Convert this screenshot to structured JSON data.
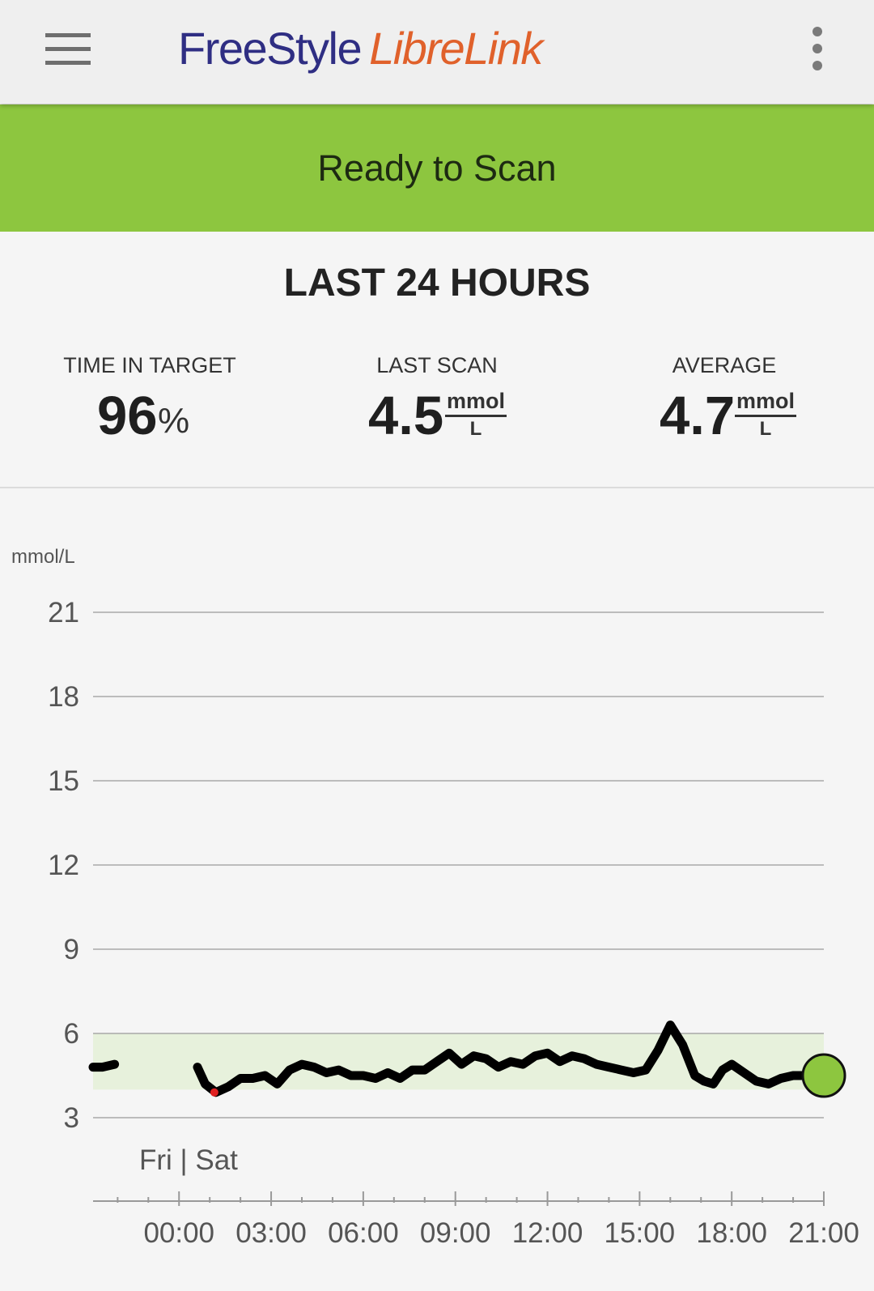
{
  "app": {
    "logo_part1": "FreeStyle",
    "logo_part2": "LibreLink",
    "logo_colors": {
      "freestyle": "#2f2e83",
      "librelink": "#e0612b"
    },
    "menu_icon": "hamburger-menu-icon",
    "overflow_icon": "more-vertical-icon"
  },
  "banner": {
    "text": "Ready to Scan",
    "color": "#8dc63f"
  },
  "summary": {
    "title": "LAST 24 HOURS",
    "time_in_target": {
      "label": "TIME IN TARGET",
      "value": "96",
      "unit": "%"
    },
    "last_scan": {
      "label": "LAST SCAN",
      "value": "4.5",
      "unit_num": "mmol",
      "unit_den": "L"
    },
    "average": {
      "label": "AVERAGE",
      "value": "4.7",
      "unit_num": "mmol",
      "unit_den": "L"
    }
  },
  "chart_data": {
    "type": "line",
    "ylabel": "mmol/L",
    "y_ticks": [
      "21",
      "18",
      "15",
      "12",
      "9",
      "6",
      "3"
    ],
    "ylim": [
      3,
      21
    ],
    "x_ticks": [
      "00:00",
      "03:00",
      "06:00",
      "09:00",
      "12:00",
      "15:00",
      "18:00",
      "21:00"
    ],
    "day_label": "Fri | Sat",
    "xlim_hours": [
      -2.8,
      21.0
    ],
    "target_range": [
      4.0,
      6.0
    ],
    "target_color": "#e7f1dc",
    "line_color": "#000000",
    "low_color": "#e02020",
    "current_marker_color": "#8dc63f",
    "grid": true,
    "segments": [
      {
        "x": [
          -2.8,
          -2.5,
          -2.1
        ],
        "y": [
          4.8,
          4.8,
          4.9
        ]
      },
      {
        "x": [
          0.6,
          0.85,
          1.2,
          1.6,
          2.0,
          2.4,
          2.8,
          3.2,
          3.6,
          4.0,
          4.4,
          4.8,
          5.2,
          5.6,
          6.0,
          6.4,
          6.8,
          7.2,
          7.6,
          8.0,
          8.4,
          8.8,
          9.2,
          9.6,
          10.0,
          10.4,
          10.8,
          11.2,
          11.6,
          12.0,
          12.4,
          12.8,
          13.2,
          13.6,
          14.0,
          14.4,
          14.8,
          15.2,
          15.6,
          16.0,
          16.4,
          16.8,
          17.1,
          17.4,
          17.7,
          18.0,
          18.4,
          18.8,
          19.2,
          19.6,
          20.0,
          20.4,
          20.7,
          21.0
        ]
      },
      {
        "x": [
          0.6,
          0.85,
          1.2
        ],
        "y": [
          4.8,
          4.2,
          3.9
        ]
      }
    ],
    "series": [
      {
        "x": [
          -2.8,
          -2.5,
          -2.1
        ],
        "y": [
          4.8,
          4.8,
          4.9
        ]
      },
      {
        "x": [
          0.6,
          0.85,
          1.2,
          1.6,
          2.0,
          2.4,
          2.8,
          3.2,
          3.6,
          4.0,
          4.4,
          4.8,
          5.2,
          5.6,
          6.0,
          6.4,
          6.8,
          7.2,
          7.6,
          8.0,
          8.4,
          8.8,
          9.2,
          9.6,
          10.0,
          10.4,
          10.8,
          11.2,
          11.6,
          12.0,
          12.4,
          12.8,
          13.2,
          13.6,
          14.0,
          14.4,
          14.8,
          15.2,
          15.6,
          16.0,
          16.4,
          16.8,
          17.1,
          17.4,
          17.7,
          18.0,
          18.4,
          18.8,
          19.2,
          19.6,
          20.0,
          20.4,
          20.7,
          21.0
        ],
        "y": [
          4.8,
          4.2,
          3.9,
          4.1,
          4.4,
          4.4,
          4.5,
          4.2,
          4.7,
          4.9,
          4.8,
          4.6,
          4.7,
          4.5,
          4.5,
          4.4,
          4.6,
          4.4,
          4.7,
          4.7,
          5.0,
          5.3,
          4.9,
          5.2,
          5.1,
          4.8,
          5.0,
          4.9,
          5.2,
          5.3,
          5.0,
          5.2,
          5.1,
          4.9,
          4.8,
          4.7,
          4.6,
          4.7,
          5.4,
          6.3,
          5.6,
          4.5,
          4.3,
          4.2,
          4.7,
          4.9,
          4.6,
          4.3,
          4.2,
          4.4,
          4.5,
          4.5,
          4.4,
          4.5
        ]
      }
    ],
    "low_point": {
      "x": 1.15,
      "y": 3.9
    },
    "current_value": {
      "x": 21.0,
      "y": 4.5
    }
  }
}
